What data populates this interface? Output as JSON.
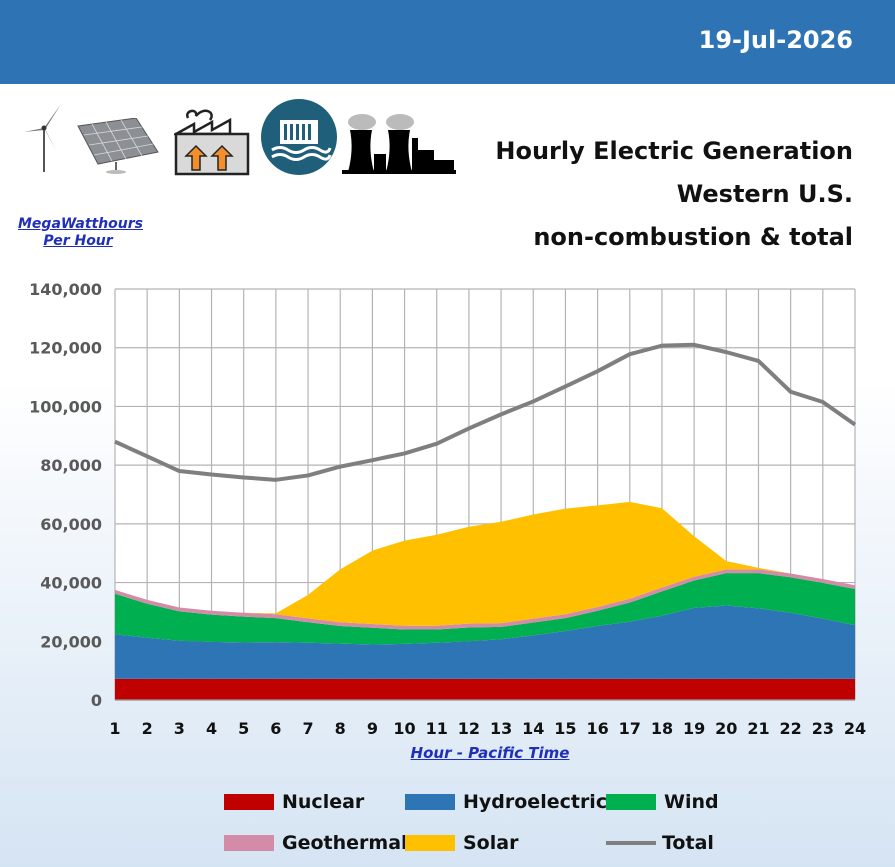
{
  "header": {
    "date": "19-Jul-2026"
  },
  "title_lines": [
    "Hourly Electric Generation",
    "Western U.S.",
    "non-combustion & total"
  ],
  "y_unit_label": [
    "MegaWatthours",
    "Per Hour"
  ],
  "icons": [
    "wind-turbine-icon",
    "solar-panel-icon",
    "geothermal-plant-icon",
    "hydro-dam-icon",
    "nuclear-plant-icon"
  ],
  "colors": {
    "header": "#2e74b5",
    "nuclear": "#c00000",
    "hydro": "#2e75b6",
    "wind": "#00b050",
    "geothermal": "#d48ba8",
    "solar": "#ffc000",
    "total": "#7f7f7f"
  },
  "chart_data": {
    "type": "area",
    "stacked": true,
    "xlabel": "Hour - Pacific Time",
    "ylabel": "MegaWatthours Per Hour",
    "x": [
      1,
      2,
      3,
      4,
      5,
      6,
      7,
      8,
      9,
      10,
      11,
      12,
      13,
      14,
      15,
      16,
      17,
      18,
      19,
      20,
      21,
      22,
      23,
      24
    ],
    "ylim": [
      0,
      140000
    ],
    "yticks": [
      0,
      20000,
      40000,
      60000,
      80000,
      100000,
      120000,
      140000
    ],
    "ytick_labels": [
      "0",
      "20,000",
      "40,000",
      "60,000",
      "80,000",
      "100,000",
      "120,000",
      "140,000"
    ],
    "grid": true,
    "series": [
      {
        "name": "Nuclear",
        "key": "nuclear",
        "kind": "area",
        "values": [
          7200,
          7200,
          7200,
          7200,
          7200,
          7200,
          7200,
          7200,
          7200,
          7200,
          7200,
          7200,
          7200,
          7200,
          7200,
          7200,
          7200,
          7200,
          7200,
          7200,
          7200,
          7200,
          7200,
          7200
        ]
      },
      {
        "name": "Hydroelectric",
        "key": "hydro",
        "kind": "area",
        "values": [
          15200,
          14000,
          13000,
          12600,
          12400,
          12500,
          12300,
          12000,
          11700,
          11900,
          12300,
          12800,
          13500,
          14800,
          16300,
          18000,
          19500,
          21500,
          24200,
          25000,
          24000,
          22500,
          20500,
          18300
        ]
      },
      {
        "name": "Wind",
        "key": "wind",
        "kind": "area",
        "values": [
          13800,
          11600,
          10000,
          9300,
          8800,
          8200,
          7000,
          6000,
          5700,
          4900,
          4500,
          4700,
          4200,
          4400,
          4400,
          5200,
          6500,
          8300,
          9300,
          11000,
          12000,
          12100,
          12200,
          12300
        ]
      },
      {
        "name": "Geothermal",
        "key": "geothermal",
        "kind": "area",
        "values": [
          1300,
          1300,
          1300,
          1300,
          1300,
          1300,
          1300,
          1300,
          1300,
          1300,
          1300,
          1300,
          1300,
          1300,
          1300,
          1300,
          1300,
          1300,
          1300,
          1300,
          1300,
          1300,
          1300,
          1300
        ]
      },
      {
        "name": "Solar",
        "key": "solar",
        "kind": "area",
        "values": [
          0,
          0,
          0,
          0,
          0,
          300,
          8000,
          18000,
          25000,
          29000,
          31000,
          33000,
          34500,
          35500,
          36000,
          34600,
          33000,
          27000,
          13800,
          2800,
          500,
          0,
          0,
          0
        ]
      },
      {
        "name": "Total",
        "key": "total",
        "kind": "line",
        "values": [
          88000,
          83000,
          78000,
          76800,
          75800,
          75000,
          76500,
          79500,
          81700,
          84000,
          87300,
          92500,
          97300,
          101700,
          106800,
          112000,
          117800,
          120700,
          121000,
          118500,
          115500,
          105000,
          101500,
          93800
        ]
      }
    ],
    "legend_placement": "bottom",
    "legend_order": [
      "nuclear",
      "hydro",
      "wind",
      "geothermal",
      "solar",
      "total"
    ]
  }
}
